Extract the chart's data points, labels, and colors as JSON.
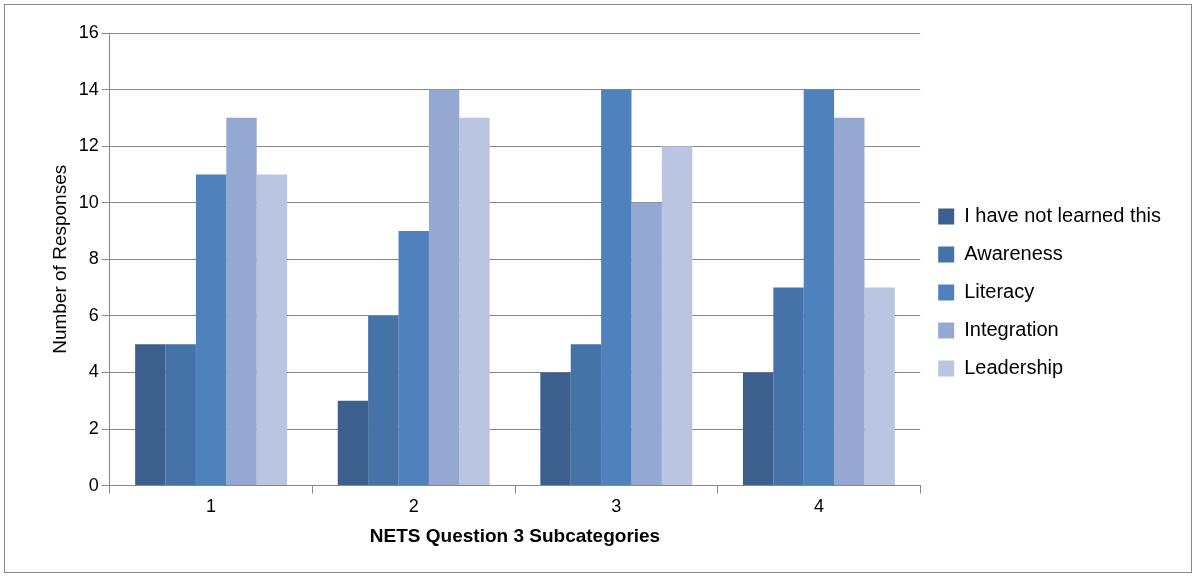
{
  "chart_data": {
    "type": "bar",
    "xlabel": "NETS Question 3 Subcategories",
    "ylabel": "Number of Responses",
    "categories": [
      "1",
      "2",
      "3",
      "4"
    ],
    "series": [
      {
        "name": "I have not learned this",
        "color": "#3c5f8e",
        "values": [
          5,
          3,
          4,
          4
        ]
      },
      {
        "name": "Awareness",
        "color": "#4572a7",
        "values": [
          5,
          6,
          5,
          7
        ]
      },
      {
        "name": "Literacy",
        "color": "#4f81bd",
        "values": [
          11,
          9,
          14,
          14
        ]
      },
      {
        "name": "Integration",
        "color": "#95a8d1",
        "values": [
          13,
          14,
          10,
          13
        ]
      },
      {
        "name": "Leadership",
        "color": "#bac5e1",
        "values": [
          11,
          13,
          12,
          7
        ]
      }
    ],
    "ylim": [
      0,
      16
    ],
    "yticks": [
      0,
      2,
      4,
      6,
      8,
      10,
      12,
      14,
      16
    ],
    "grid": "y",
    "legend": "right"
  }
}
